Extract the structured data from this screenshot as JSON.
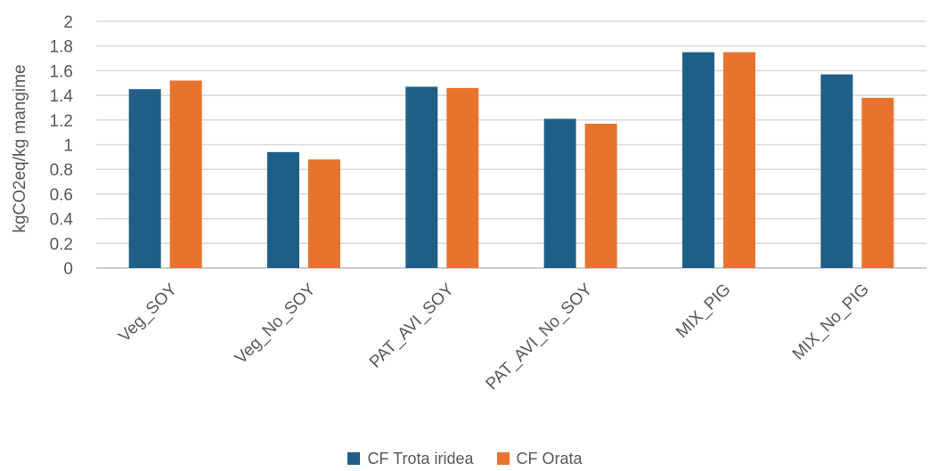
{
  "chart_data": {
    "type": "bar",
    "title": "",
    "xlabel": "",
    "ylabel": "kgCO2eq/kg mangime",
    "ylim": [
      0,
      2
    ],
    "yticks": [
      "0",
      "0.2",
      "0.4",
      "0.6",
      "0.8",
      "1",
      "1.2",
      "1.4",
      "1.6",
      "1.8",
      "2"
    ],
    "categories": [
      "Veg_SOY",
      "Veg_No_SOY",
      "PAT_AVI_SOY",
      "PAT_AVI_No_SOY",
      "MIX_PIG",
      "MIX_No_PIG"
    ],
    "series": [
      {
        "name": "CF Trota iridea",
        "color": "#1f5f87",
        "values": [
          1.45,
          0.94,
          1.47,
          1.21,
          1.75,
          1.57
        ]
      },
      {
        "name": "CF Orata",
        "color": "#e8732f",
        "values": [
          1.52,
          0.88,
          1.46,
          1.17,
          1.75,
          1.38
        ]
      }
    ],
    "grid": true,
    "legend_position": "bottom"
  }
}
